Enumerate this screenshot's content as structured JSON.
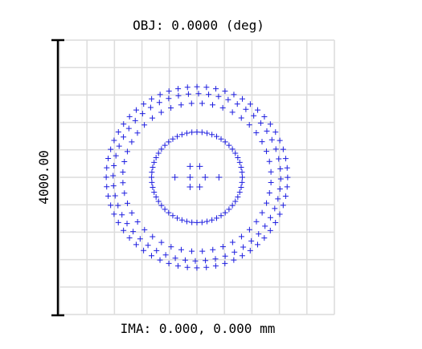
{
  "title": "OBJ: 0.0000 (deg)",
  "scale_label": "4000.00",
  "image_label": "IMA: 0.000, 0.000 mm",
  "colors": {
    "grid": "#dcdcdc",
    "marker": "#1f1fe0",
    "scale_bar": "#000000",
    "background": "#ffffff"
  },
  "chart_data": {
    "type": "scatter",
    "grid": true,
    "grid_divisions": 10,
    "marker": "plus",
    "series": [
      {
        "rings": [
          {
            "radius": 0.33,
            "count": 56
          },
          {
            "radius": 0.54,
            "count": 44
          },
          {
            "radius": 0.61,
            "count": 52
          },
          {
            "radius": 0.66,
            "count": 60
          }
        ],
        "inner_points": [
          [
            -0.05,
            -0.08
          ],
          [
            0.02,
            -0.08
          ],
          [
            -0.16,
            0
          ],
          [
            -0.05,
            0
          ],
          [
            0.06,
            0
          ],
          [
            0.16,
            0
          ],
          [
            -0.05,
            0.07
          ],
          [
            0.02,
            0.07
          ]
        ]
      }
    ]
  }
}
